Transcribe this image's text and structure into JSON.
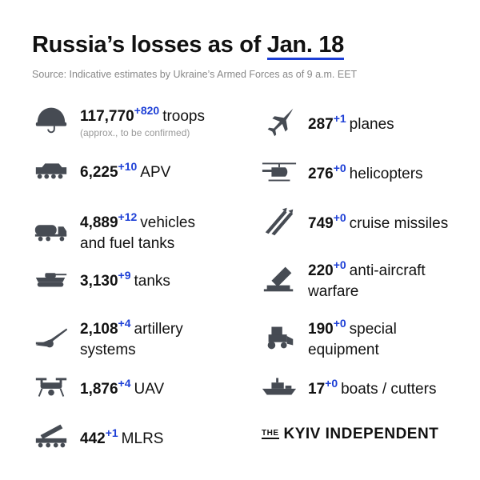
{
  "title": {
    "prefix": "Russia’s losses as of ",
    "date": "Jan. 18"
  },
  "source": "Source: Indicative estimates by Ukraine’s Armed Forces as of 9 a.m. EET",
  "left": [
    {
      "icon": "helmet-icon",
      "value": "117,770",
      "inc": "+820",
      "label": "troops",
      "note": "(approx., to be confirmed)"
    },
    {
      "icon": "apv-icon",
      "value": "6,225",
      "inc": "+10",
      "label": "APV"
    },
    {
      "icon": "fuel-truck-icon",
      "value": "4,889",
      "inc": "+12",
      "label": "vehicles",
      "label2": "and fuel tanks"
    },
    {
      "icon": "tank-icon",
      "value": "3,130",
      "inc": "+9",
      "label": "tanks"
    },
    {
      "icon": "artillery-icon",
      "value": "2,108",
      "inc": "+4",
      "label": "artillery",
      "label2": "systems"
    },
    {
      "icon": "drone-icon",
      "value": "1,876",
      "inc": "+4",
      "label": "UAV"
    },
    {
      "icon": "mlrs-icon",
      "value": "442",
      "inc": "+1",
      "label": "MLRS"
    }
  ],
  "right": [
    {
      "icon": "plane-icon",
      "value": "287",
      "inc": "+1",
      "label": "planes"
    },
    {
      "icon": "helicopter-icon",
      "value": "276",
      "inc": "+0",
      "label": "helicopters"
    },
    {
      "icon": "missile-icon",
      "value": "749",
      "inc": "+0",
      "label": "cruise missiles"
    },
    {
      "icon": "anti-aircraft-icon",
      "value": "220",
      "inc": "+0",
      "label": "anti-aircraft",
      "label2": "warfare"
    },
    {
      "icon": "loader-icon",
      "value": "190",
      "inc": "+0",
      "label": "special",
      "label2": "equipment"
    },
    {
      "icon": "boat-icon",
      "value": "17",
      "inc": "+0",
      "label": "boats / cutters"
    }
  ],
  "logo": {
    "the": "THE",
    "name": "KYIV INDEPENDENT"
  },
  "colors": {
    "accent": "#1d3fd6",
    "icon": "#464b53"
  }
}
